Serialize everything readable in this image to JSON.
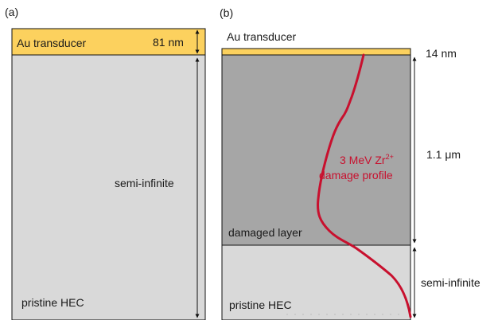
{
  "panel_a": {
    "label": "(a)",
    "transducer_label": "Au transducer",
    "transducer_thickness": "81 nm",
    "substrate_thickness": "semi-infinite",
    "substrate_label": "pristine HEC"
  },
  "panel_b": {
    "label": "(b)",
    "transducer_label": "Au transducer",
    "transducer_thickness": "14 nm",
    "damaged_thickness": "1.1 μm",
    "profile_label_line1": "3 MeV Zr",
    "profile_label_sup": "2+",
    "profile_label_line2": "damage profile",
    "damaged_label": "damaged layer",
    "substrate_thickness": "semi-infinite",
    "substrate_label": "pristine HEC"
  },
  "colors": {
    "gold": "#fcd15e",
    "pristine": "#d9d9d9",
    "damaged": "#a6a6a6",
    "profile": "#c8102e"
  }
}
